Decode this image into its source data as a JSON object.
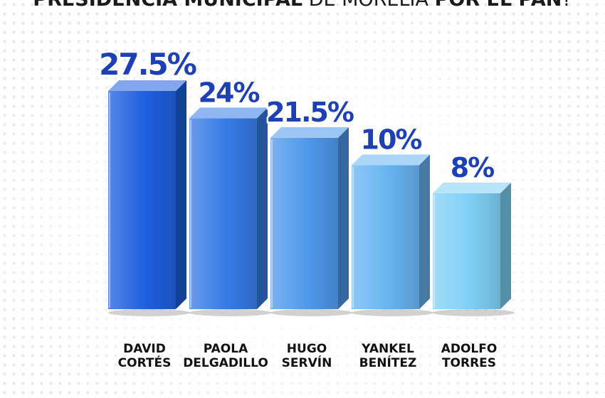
{
  "title": {
    "part1": "PRESIDENCIA MUNICIPAL",
    "part2": " DE MORELIA ",
    "part3": "POR EL PAN",
    "part4": "?"
  },
  "colors": {
    "bar_dark": "#1e5fe0",
    "bar_light": "#7fd0f6",
    "value_text": "#1d3fb8"
  },
  "chart_data": {
    "type": "bar",
    "title": "PRESIDENCIA MUNICIPAL DE MORELIA POR EL PAN?",
    "categories": [
      "DAVID CORTÉS",
      "PAOLA DELGADILLO",
      "HUGO SERVÍN",
      "YANKEL BENÍTEZ",
      "ADOLFO TORRES"
    ],
    "category_lines": [
      [
        "DAVID",
        "CORTÉS"
      ],
      [
        "PAOLA",
        "DELGADILLO"
      ],
      [
        "HUGO",
        "SERVÍN"
      ],
      [
        "YANKEL",
        "BENÍTEZ"
      ],
      [
        "ADOLFO",
        "TORRES"
      ]
    ],
    "values": [
      27.5,
      24,
      21.5,
      10,
      8
    ],
    "value_labels": [
      "27.5%",
      "24%",
      "21.5%",
      "10%",
      "8%"
    ],
    "ylim": [
      0,
      30
    ],
    "xlabel": "",
    "ylabel": "",
    "grid": false,
    "legend": "none"
  }
}
